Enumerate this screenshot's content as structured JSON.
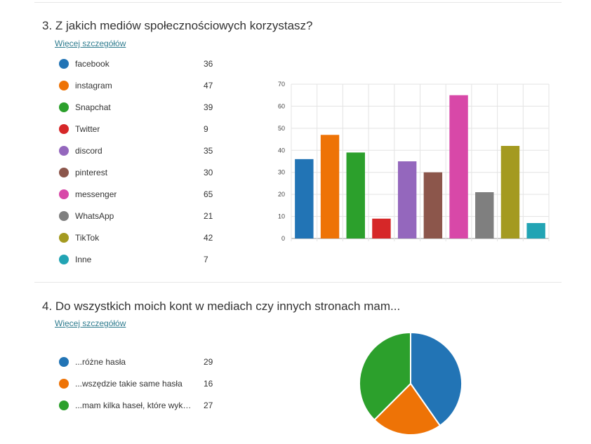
{
  "questions": [
    {
      "number_title": "3.  Z jakich mediów społecznościowych korzystasz?",
      "details_link": "Więcej szczegółów",
      "options": [
        {
          "label": "facebook",
          "count": "36",
          "color": "#2274b5"
        },
        {
          "label": "instagram",
          "count": "47",
          "color": "#ee7306"
        },
        {
          "label": "Snapchat",
          "count": "39",
          "color": "#2ca02c"
        },
        {
          "label": "Twitter",
          "count": "9",
          "color": "#d62728"
        },
        {
          "label": "discord",
          "count": "35",
          "color": "#9467bd"
        },
        {
          "label": "pinterest",
          "count": "30",
          "color": "#8c564b"
        },
        {
          "label": "messenger",
          "count": "65",
          "color": "#d848a8"
        },
        {
          "label": "WhatsApp",
          "count": "21",
          "color": "#7f7f7f"
        },
        {
          "label": "TikTok",
          "count": "42",
          "color": "#a49a20"
        },
        {
          "label": "Inne",
          "count": "7",
          "color": "#22a4b4"
        }
      ]
    },
    {
      "number_title": "4.  Do wszystkich moich kont w mediach czy innych stronach mam...",
      "details_link": "Więcej szczegółów",
      "options": [
        {
          "label": "...różne hasła",
          "count": "29",
          "color": "#2274b5"
        },
        {
          "label": "...wszędzie takie same hasła",
          "count": "16",
          "color": "#ee7306"
        },
        {
          "label": "...mam kilka haseł, które wykor...",
          "count": "27",
          "color": "#2ca02c"
        }
      ]
    }
  ],
  "chart_data": [
    {
      "type": "bar",
      "categories": [
        "facebook",
        "instagram",
        "Snapchat",
        "Twitter",
        "discord",
        "pinterest",
        "messenger",
        "WhatsApp",
        "TikTok",
        "Inne"
      ],
      "values": [
        36,
        47,
        39,
        9,
        35,
        30,
        65,
        21,
        42,
        7
      ],
      "ylim": [
        0,
        70
      ],
      "yticks": [
        "0",
        "10",
        "20",
        "30",
        "40",
        "50",
        "60",
        "70"
      ],
      "grid": true,
      "legend": "left",
      "colors": [
        "#2274b5",
        "#ee7306",
        "#2ca02c",
        "#d62728",
        "#9467bd",
        "#8c564b",
        "#d848a8",
        "#7f7f7f",
        "#a49a20",
        "#22a4b4"
      ]
    },
    {
      "type": "pie",
      "categories": [
        "...różne hasła",
        "...wszędzie takie same hasła",
        "...mam kilka haseł, które wykor..."
      ],
      "values": [
        29,
        16,
        27
      ],
      "legend": "left",
      "colors": [
        "#2274b5",
        "#ee7306",
        "#2ca02c"
      ]
    }
  ]
}
